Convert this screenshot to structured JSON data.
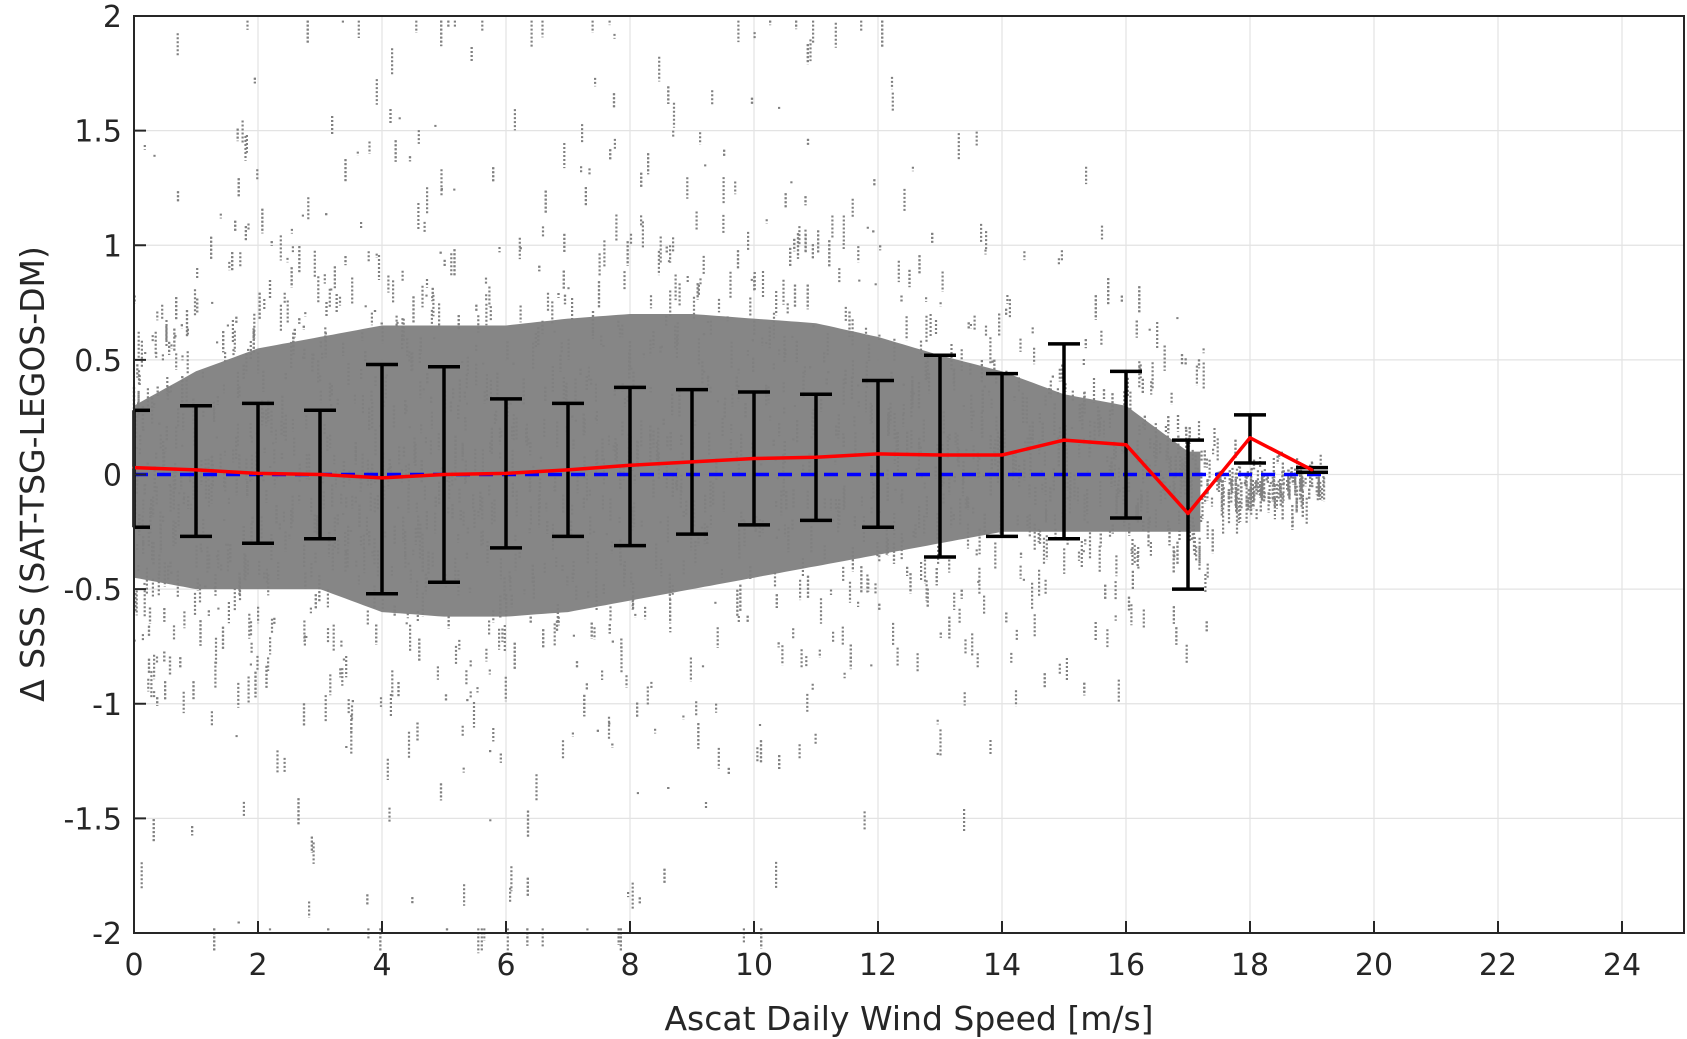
{
  "chart_data": {
    "type": "scatter",
    "title": "",
    "xlabel": "Ascat Daily Wind Speed [m/s]",
    "ylabel": "Δ SSS (SAT-TSG-LEGOS-DM)",
    "xlim": [
      0,
      25
    ],
    "ylim": [
      -2,
      2
    ],
    "xticks": [
      "0",
      "2",
      "4",
      "6",
      "8",
      "10",
      "12",
      "14",
      "16",
      "18",
      "20",
      "22",
      "24"
    ],
    "yticks": [
      "-2",
      "-1.5",
      "-1",
      "-0.5",
      "0",
      "0.5",
      "1",
      "1.5",
      "2"
    ],
    "grid": true,
    "colors": {
      "scatter": "#808080",
      "mean_line": "#ff0000",
      "reference_line": "#0000ff",
      "error_bars": "#000000",
      "grid": "#e3e3e3",
      "axes": "#262626"
    },
    "reference_line": {
      "y": 0,
      "style": "dashed"
    },
    "series": [
      {
        "type": "line",
        "x": [
          0,
          1,
          2,
          3,
          4,
          5,
          6,
          7,
          8,
          9,
          10,
          11,
          12,
          13,
          14,
          15,
          16,
          17,
          18,
          19
        ],
        "values": [
          0.03,
          0.02,
          0.005,
          0.0,
          -0.015,
          0.0,
          0.005,
          0.02,
          0.04,
          0.055,
          0.07,
          0.075,
          0.09,
          0.085,
          0.085,
          0.15,
          0.13,
          -0.17,
          0.16,
          0.02
        ]
      },
      {
        "type": "errorbar",
        "x": [
          0,
          1,
          2,
          3,
          4,
          5,
          6,
          7,
          8,
          9,
          10,
          11,
          12,
          13,
          14,
          15,
          16,
          17,
          18,
          19
        ],
        "upper": [
          0.28,
          0.3,
          0.31,
          0.28,
          0.48,
          0.47,
          0.33,
          0.31,
          0.38,
          0.37,
          0.36,
          0.35,
          0.41,
          0.52,
          0.44,
          0.57,
          0.45,
          0.15,
          0.26,
          0.03
        ],
        "lower": [
          -0.23,
          -0.27,
          -0.3,
          -0.28,
          -0.52,
          -0.47,
          -0.32,
          -0.27,
          -0.31,
          -0.26,
          -0.22,
          -0.2,
          -0.23,
          -0.36,
          -0.27,
          -0.28,
          -0.19,
          -0.5,
          0.05,
          0.01
        ]
      }
    ],
    "scatter_cloud": {
      "x_range": [
        0,
        19.2
      ],
      "y_range": [
        -2,
        2
      ],
      "core_band": {
        "x": [
          0,
          1,
          2,
          3,
          4,
          5,
          6,
          7,
          8,
          9,
          10,
          11,
          12,
          13,
          14,
          15,
          16,
          17
        ],
        "upper": [
          0.3,
          0.45,
          0.55,
          0.6,
          0.65,
          0.65,
          0.65,
          0.68,
          0.7,
          0.7,
          0.68,
          0.66,
          0.6,
          0.52,
          0.45,
          0.35,
          0.3,
          0.1
        ],
        "lower": [
          -0.45,
          -0.5,
          -0.5,
          -0.5,
          -0.6,
          -0.62,
          -0.62,
          -0.6,
          -0.55,
          -0.5,
          -0.45,
          -0.4,
          -0.35,
          -0.3,
          -0.25,
          -0.25,
          -0.25,
          -0.25
        ]
      }
    }
  }
}
